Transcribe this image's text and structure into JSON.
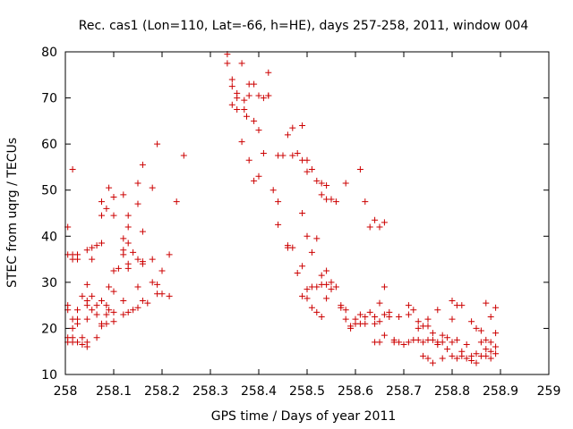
{
  "chart_data": {
    "type": "scatter",
    "title": "Rec. cas1 (Lon=110, Lat=-66, h=HE), days 257-258, 2011, window 004",
    "xlabel": "GPS time / Days of year 2011",
    "ylabel": "STEC from uqrg / TECUs",
    "xlim": [
      258,
      259
    ],
    "ylim": [
      10,
      80
    ],
    "x_ticks": [
      258,
      258.1,
      258.2,
      258.3,
      258.4,
      258.5,
      258.6,
      258.7,
      258.8,
      258.9,
      259
    ],
    "x_tick_labels": [
      "258",
      "258.1",
      "258.2",
      "258.3",
      "258.4",
      "258.5",
      "258.6",
      "258.7",
      "258.8",
      "258.9",
      "259"
    ],
    "y_ticks": [
      10,
      20,
      30,
      40,
      50,
      60,
      70,
      80
    ],
    "y_tick_labels": [
      "10",
      "20",
      "30",
      "40",
      "50",
      "60",
      "70",
      "80"
    ],
    "grid": false,
    "marker": "+",
    "marker_color": "#cc0000",
    "axis_color": "#000000",
    "series": [
      {
        "name": "STEC",
        "points": [
          [
            258.005,
            42
          ],
          [
            258.005,
            36
          ],
          [
            258.005,
            25
          ],
          [
            258.005,
            24
          ],
          [
            258.005,
            18
          ],
          [
            258.005,
            17
          ],
          [
            258.015,
            54.5
          ],
          [
            258.015,
            36
          ],
          [
            258.015,
            35
          ],
          [
            258.015,
            22
          ],
          [
            258.015,
            20
          ],
          [
            258.015,
            18
          ],
          [
            258.015,
            17
          ],
          [
            258.025,
            36
          ],
          [
            258.025,
            35
          ],
          [
            258.025,
            24
          ],
          [
            258.025,
            22
          ],
          [
            258.025,
            21
          ],
          [
            258.025,
            17
          ],
          [
            258.035,
            27
          ],
          [
            258.035,
            18
          ],
          [
            258.035,
            16.5
          ],
          [
            258.045,
            37
          ],
          [
            258.045,
            29.5
          ],
          [
            258.045,
            26
          ],
          [
            258.045,
            25
          ],
          [
            258.045,
            22
          ],
          [
            258.045,
            17
          ],
          [
            258.045,
            16
          ],
          [
            258.055,
            37.5
          ],
          [
            258.055,
            35
          ],
          [
            258.055,
            27
          ],
          [
            258.055,
            24
          ],
          [
            258.065,
            38
          ],
          [
            258.065,
            25
          ],
          [
            258.065,
            23
          ],
          [
            258.065,
            18
          ],
          [
            258.075,
            47.5
          ],
          [
            258.075,
            44.5
          ],
          [
            258.075,
            38.5
          ],
          [
            258.075,
            26
          ],
          [
            258.075,
            21
          ],
          [
            258.075,
            20.5
          ],
          [
            258.085,
            46
          ],
          [
            258.085,
            25
          ],
          [
            258.085,
            23
          ],
          [
            258.085,
            21
          ],
          [
            258.09,
            50.5
          ],
          [
            258.09,
            29
          ],
          [
            258.09,
            24
          ],
          [
            258.1,
            48.5
          ],
          [
            258.1,
            44.5
          ],
          [
            258.1,
            32.5
          ],
          [
            258.1,
            28
          ],
          [
            258.1,
            23.5
          ],
          [
            258.1,
            21.5
          ],
          [
            258.11,
            33
          ],
          [
            258.12,
            49
          ],
          [
            258.12,
            39.5
          ],
          [
            258.12,
            37
          ],
          [
            258.12,
            36
          ],
          [
            258.12,
            26
          ],
          [
            258.12,
            23
          ],
          [
            258.13,
            44.5
          ],
          [
            258.13,
            42
          ],
          [
            258.13,
            38.5
          ],
          [
            258.13,
            34
          ],
          [
            258.13,
            33
          ],
          [
            258.13,
            23.5
          ],
          [
            258.14,
            36.5
          ],
          [
            258.14,
            24
          ],
          [
            258.15,
            51.5
          ],
          [
            258.15,
            47
          ],
          [
            258.15,
            35
          ],
          [
            258.15,
            29
          ],
          [
            258.15,
            24.5
          ],
          [
            258.16,
            55.5
          ],
          [
            258.16,
            41
          ],
          [
            258.16,
            34.5
          ],
          [
            258.16,
            34
          ],
          [
            258.16,
            26
          ],
          [
            258.17,
            25.5
          ],
          [
            258.18,
            50.5
          ],
          [
            258.18,
            35
          ],
          [
            258.18,
            30
          ],
          [
            258.19,
            60
          ],
          [
            258.19,
            27.5
          ],
          [
            258.19,
            29.5
          ],
          [
            258.2,
            32.5
          ],
          [
            258.2,
            27.5
          ],
          [
            258.215,
            36
          ],
          [
            258.215,
            27
          ],
          [
            258.23,
            47.5
          ],
          [
            258.245,
            57.5
          ],
          [
            258.335,
            79.5
          ],
          [
            258.335,
            77.5
          ],
          [
            258.345,
            74
          ],
          [
            258.345,
            72.5
          ],
          [
            258.345,
            68.5
          ],
          [
            258.355,
            71
          ],
          [
            258.355,
            70
          ],
          [
            258.355,
            67.5
          ],
          [
            258.365,
            77.5
          ],
          [
            258.365,
            60.5
          ],
          [
            258.37,
            69.5
          ],
          [
            258.37,
            67.5
          ],
          [
            258.375,
            66
          ],
          [
            258.38,
            73
          ],
          [
            258.38,
            70.5
          ],
          [
            258.38,
            56.5
          ],
          [
            258.39,
            73
          ],
          [
            258.39,
            65
          ],
          [
            258.39,
            52
          ],
          [
            258.4,
            70.5
          ],
          [
            258.4,
            63
          ],
          [
            258.4,
            53
          ],
          [
            258.41,
            70
          ],
          [
            258.41,
            58
          ],
          [
            258.42,
            75.5
          ],
          [
            258.42,
            70.5
          ],
          [
            258.42,
            70.5
          ],
          [
            258.43,
            50
          ],
          [
            258.44,
            57.5
          ],
          [
            258.44,
            47.5
          ],
          [
            258.44,
            42.5
          ],
          [
            258.45,
            57.5
          ],
          [
            258.46,
            62
          ],
          [
            258.46,
            38
          ],
          [
            258.46,
            37.5
          ],
          [
            258.47,
            63.5
          ],
          [
            258.47,
            57.5
          ],
          [
            258.47,
            37.5
          ],
          [
            258.48,
            58
          ],
          [
            258.48,
            32
          ],
          [
            258.49,
            64
          ],
          [
            258.49,
            56.5
          ],
          [
            258.49,
            45
          ],
          [
            258.49,
            33.5
          ],
          [
            258.49,
            27
          ],
          [
            258.5,
            56.5
          ],
          [
            258.5,
            54
          ],
          [
            258.5,
            40
          ],
          [
            258.5,
            28.5
          ],
          [
            258.5,
            26.5
          ],
          [
            258.51,
            54.5
          ],
          [
            258.51,
            36.5
          ],
          [
            258.51,
            29
          ],
          [
            258.51,
            24.5
          ],
          [
            258.52,
            52
          ],
          [
            258.52,
            39.5
          ],
          [
            258.52,
            29
          ],
          [
            258.52,
            23.5
          ],
          [
            258.53,
            51.5
          ],
          [
            258.53,
            49
          ],
          [
            258.53,
            31.5
          ],
          [
            258.53,
            29.5
          ],
          [
            258.53,
            22.5
          ],
          [
            258.54,
            51
          ],
          [
            258.54,
            48
          ],
          [
            258.54,
            32.5
          ],
          [
            258.54,
            29.5
          ],
          [
            258.54,
            26.5
          ],
          [
            258.55,
            48
          ],
          [
            258.55,
            30
          ],
          [
            258.55,
            28.5
          ],
          [
            258.56,
            47.5
          ],
          [
            258.56,
            29
          ],
          [
            258.57,
            25
          ],
          [
            258.57,
            24.5
          ],
          [
            258.58,
            51.5
          ],
          [
            258.58,
            24
          ],
          [
            258.58,
            22
          ],
          [
            258.59,
            20.5
          ],
          [
            258.59,
            20
          ],
          [
            258.6,
            22
          ],
          [
            258.6,
            21
          ],
          [
            258.61,
            54.5
          ],
          [
            258.61,
            23
          ],
          [
            258.61,
            21
          ],
          [
            258.62,
            47.5
          ],
          [
            258.62,
            22.5
          ],
          [
            258.62,
            21
          ],
          [
            258.63,
            42
          ],
          [
            258.63,
            23.5
          ],
          [
            258.64,
            43.5
          ],
          [
            258.64,
            22.5
          ],
          [
            258.64,
            21
          ],
          [
            258.64,
            17
          ],
          [
            258.65,
            42
          ],
          [
            258.65,
            25.5
          ],
          [
            258.65,
            21.5
          ],
          [
            258.65,
            17
          ],
          [
            258.66,
            43
          ],
          [
            258.66,
            29
          ],
          [
            258.66,
            23
          ],
          [
            258.66,
            18.5
          ],
          [
            258.67,
            23.5
          ],
          [
            258.67,
            22.5
          ],
          [
            258.68,
            17.5
          ],
          [
            258.68,
            17
          ],
          [
            258.69,
            17
          ],
          [
            258.69,
            22.5
          ],
          [
            258.7,
            16.5
          ],
          [
            258.7,
            16.5
          ],
          [
            258.71,
            25
          ],
          [
            258.71,
            23
          ],
          [
            258.71,
            17
          ],
          [
            258.72,
            24
          ],
          [
            258.72,
            17.5
          ],
          [
            258.73,
            17.5
          ],
          [
            258.73,
            20
          ],
          [
            258.73,
            21.5
          ],
          [
            258.74,
            20.5
          ],
          [
            258.74,
            14
          ],
          [
            258.74,
            17
          ],
          [
            258.75,
            22
          ],
          [
            258.75,
            20.5
          ],
          [
            258.75,
            17.5
          ],
          [
            258.75,
            13.5
          ],
          [
            258.76,
            19
          ],
          [
            258.76,
            17.5
          ],
          [
            258.76,
            12.5
          ],
          [
            258.77,
            24
          ],
          [
            258.77,
            17
          ],
          [
            258.77,
            16.5
          ],
          [
            258.78,
            18.5
          ],
          [
            258.78,
            17
          ],
          [
            258.78,
            13.5
          ],
          [
            258.79,
            18
          ],
          [
            258.79,
            15.5
          ],
          [
            258.8,
            26
          ],
          [
            258.8,
            22
          ],
          [
            258.8,
            17
          ],
          [
            258.8,
            14
          ],
          [
            258.81,
            25
          ],
          [
            258.81,
            17.5
          ],
          [
            258.81,
            13.5
          ],
          [
            258.82,
            25
          ],
          [
            258.82,
            15
          ],
          [
            258.82,
            14
          ],
          [
            258.83,
            16.5
          ],
          [
            258.83,
            13.5
          ],
          [
            258.84,
            21.5
          ],
          [
            258.84,
            14
          ],
          [
            258.84,
            13
          ],
          [
            258.85,
            20
          ],
          [
            258.85,
            14.5
          ],
          [
            258.85,
            12.5
          ],
          [
            258.86,
            19.5
          ],
          [
            258.86,
            17
          ],
          [
            258.86,
            14
          ],
          [
            258.87,
            25.5
          ],
          [
            258.87,
            17.5
          ],
          [
            258.87,
            15.5
          ],
          [
            258.87,
            14
          ],
          [
            258.88,
            22.5
          ],
          [
            258.88,
            17
          ],
          [
            258.88,
            15
          ],
          [
            258.88,
            13.5
          ],
          [
            258.89,
            24.5
          ],
          [
            258.89,
            19
          ],
          [
            258.89,
            16
          ],
          [
            258.89,
            14.5
          ]
        ]
      }
    ]
  }
}
